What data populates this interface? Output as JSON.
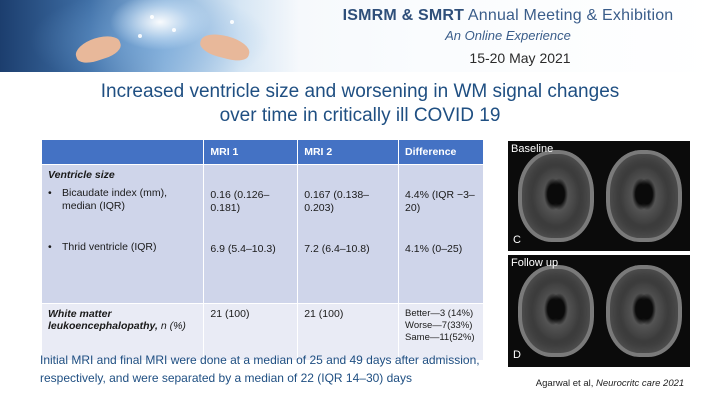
{
  "header": {
    "conference_bold": "ISMRM & SMRT",
    "conference_rest": "Annual Meeting & Exhibition",
    "subtitle": "An Online Experience",
    "dates": "15-20 May 2021"
  },
  "slide": {
    "title_line1": "Increased ventricle size and worsening in WM signal changes",
    "title_line2": "over time in critically ill COVID 19"
  },
  "table": {
    "headers": [
      "",
      "MRI 1",
      "MRI 2",
      "Difference"
    ],
    "ventricle": {
      "section_label": "Ventricle size",
      "bullet": "•",
      "bicaudate": {
        "label": "Bicaudate index (mm), median (IQR)",
        "mri1": "0.16 (0.126–0.181)",
        "mri2": "0.167 (0.138–0.203)",
        "diff": "4.4% (IQR −3–20)"
      },
      "third": {
        "label": "Thrid ventricle (IQR)",
        "mri1": "6.9 (5.4–10.3)",
        "mri2": "7.2 (6.4–10.8)",
        "diff": "4.1% (0–25)"
      }
    },
    "wm": {
      "label": "White matter leukoencephalopathy,",
      "label_suffix": "n (%)",
      "mri1": "21 (100)",
      "mri2": "21 (100)",
      "diff_lines": [
        "Better—3 (14%)",
        "Worse—7(33%)",
        "Same—11(52%)"
      ]
    }
  },
  "footnote": "Initial MRI and final MRI were done at a median of 25 and 49 days after admission, respectively, and were separated by a median of 22 (IQR 14–30) days",
  "citation": {
    "prefix": "Agarwal et al,",
    "journal": "Neurocritc care 2021"
  },
  "mri_panels": {
    "top_label": "Baseline",
    "top_corner": "C",
    "bottom_label": "Follow up",
    "bottom_corner": "D"
  }
}
